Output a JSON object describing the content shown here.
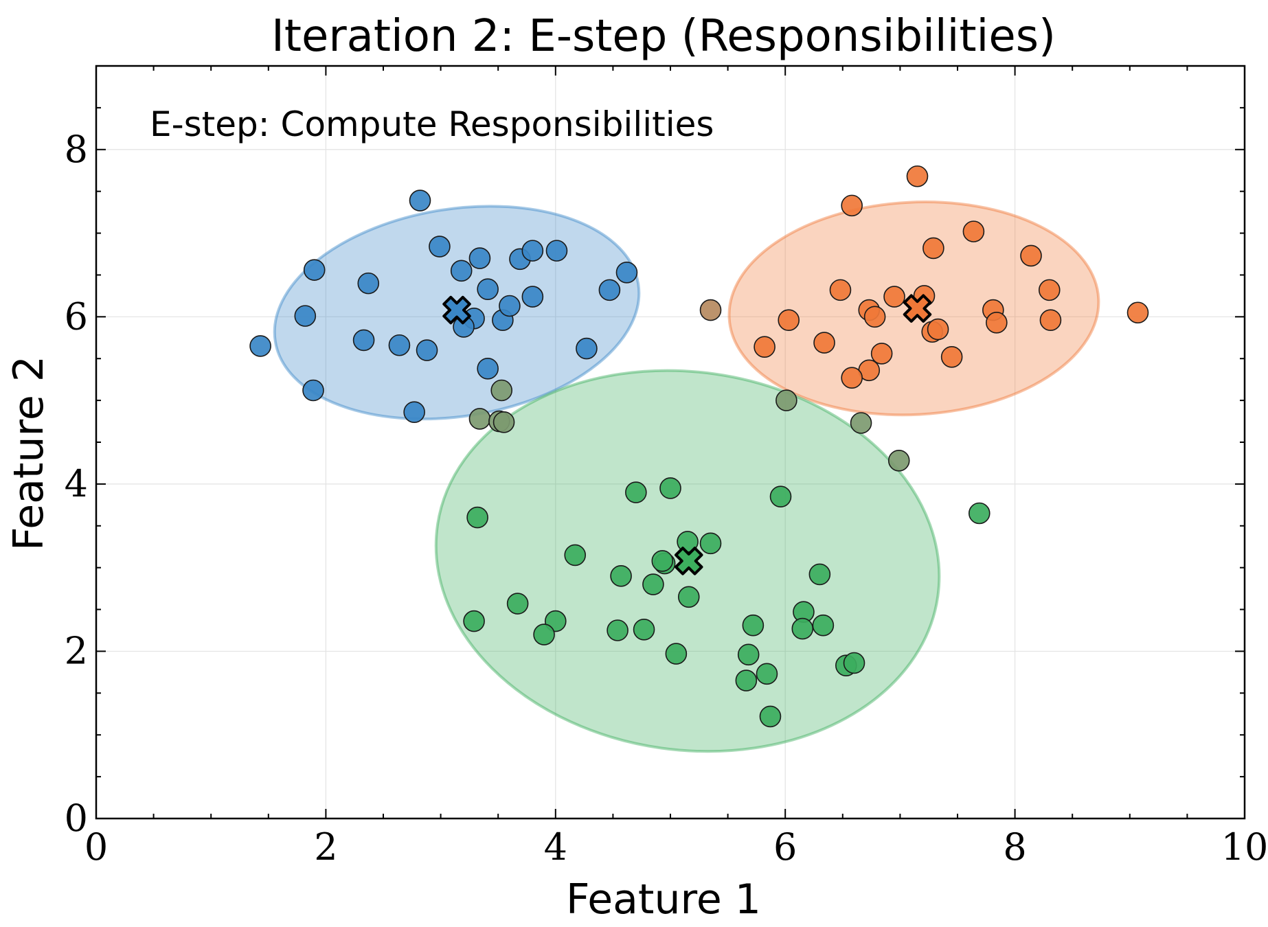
{
  "chart_data": {
    "type": "scatter",
    "title": "Iteration 2: E-step (Responsibilities)",
    "xlabel": "Feature 1",
    "ylabel": "Feature 2",
    "annotation": "E-step: Compute Responsibilities",
    "xlim": [
      0,
      10
    ],
    "ylim": [
      0,
      9
    ],
    "xticks": [
      0,
      2,
      4,
      6,
      8,
      10
    ],
    "yticks": [
      0,
      2,
      4,
      6,
      8
    ],
    "xtick_labels": [
      "0",
      "2",
      "4",
      "6",
      "8",
      "10"
    ],
    "ytick_labels": [
      "0",
      "2",
      "4",
      "6",
      "8"
    ],
    "grid": true,
    "ellipses": [
      {
        "color": "#3a87c7",
        "cx": 3.14,
        "cy": 6.05,
        "rx": 1.6,
        "ry": 1.24,
        "angle_deg": 9
      },
      {
        "color": "#f07838",
        "cx": 7.12,
        "cy": 6.1,
        "rx": 1.61,
        "ry": 1.27,
        "angle_deg": 3
      },
      {
        "color": "#3cae5e",
        "cx": 5.15,
        "cy": 3.08,
        "rx": 2.2,
        "ry": 2.26,
        "angle_deg": -8
      }
    ],
    "centroids": [
      {
        "color": "#3a87c7",
        "x": 3.14,
        "y": 6.08
      },
      {
        "color": "#f07838",
        "x": 7.15,
        "y": 6.1
      },
      {
        "color": "#3cae5e",
        "x": 5.16,
        "y": 3.08
      }
    ],
    "series": [
      {
        "color": "#3a87c7",
        "points": [
          [
            1.43,
            5.65
          ],
          [
            1.82,
            6.01
          ],
          [
            1.9,
            6.56
          ],
          [
            1.89,
            5.12
          ],
          [
            2.37,
            6.4
          ],
          [
            2.33,
            5.72
          ],
          [
            2.64,
            5.66
          ],
          [
            2.82,
            7.39
          ],
          [
            2.88,
            5.6
          ],
          [
            2.77,
            4.86
          ],
          [
            2.99,
            6.84
          ],
          [
            3.18,
            6.55
          ],
          [
            3.29,
            5.98
          ],
          [
            3.2,
            5.88
          ],
          [
            3.34,
            6.7
          ],
          [
            3.41,
            6.33
          ],
          [
            3.41,
            5.38
          ],
          [
            3.54,
            5.96
          ],
          [
            3.6,
            6.13
          ],
          [
            3.69,
            6.69
          ],
          [
            3.8,
            6.79
          ],
          [
            4.01,
            6.79
          ],
          [
            3.8,
            6.24
          ],
          [
            4.47,
            6.32
          ],
          [
            4.62,
            6.53
          ],
          [
            4.27,
            5.62
          ]
        ]
      },
      {
        "color": "#f07838",
        "points": [
          [
            7.15,
            7.68
          ],
          [
            6.58,
            7.33
          ],
          [
            7.64,
            7.02
          ],
          [
            7.29,
            6.82
          ],
          [
            8.14,
            6.73
          ],
          [
            6.48,
            6.32
          ],
          [
            6.95,
            6.24
          ],
          [
            7.21,
            6.25
          ],
          [
            8.3,
            6.32
          ],
          [
            7.81,
            6.08
          ],
          [
            9.07,
            6.05
          ],
          [
            6.73,
            6.08
          ],
          [
            6.78,
            6.0
          ],
          [
            6.03,
            5.96
          ],
          [
            7.84,
            5.93
          ],
          [
            8.31,
            5.96
          ],
          [
            7.28,
            5.82
          ],
          [
            7.33,
            5.85
          ],
          [
            6.34,
            5.69
          ],
          [
            6.84,
            5.56
          ],
          [
            7.45,
            5.52
          ],
          [
            5.82,
            5.64
          ],
          [
            6.73,
            5.36
          ],
          [
            6.58,
            5.27
          ]
        ]
      },
      {
        "color": "#3cae5e",
        "points": [
          [
            5.0,
            3.95
          ],
          [
            4.7,
            3.9
          ],
          [
            5.96,
            3.85
          ],
          [
            3.32,
            3.6
          ],
          [
            7.69,
            3.65
          ],
          [
            5.15,
            3.31
          ],
          [
            5.35,
            3.29
          ],
          [
            4.17,
            3.15
          ],
          [
            4.95,
            3.05
          ],
          [
            4.93,
            3.08
          ],
          [
            4.57,
            2.9
          ],
          [
            6.3,
            2.92
          ],
          [
            4.85,
            2.8
          ],
          [
            5.16,
            2.65
          ],
          [
            3.67,
            2.57
          ],
          [
            6.16,
            2.47
          ],
          [
            3.29,
            2.36
          ],
          [
            4.0,
            2.36
          ],
          [
            3.9,
            2.2
          ],
          [
            4.54,
            2.25
          ],
          [
            4.77,
            2.26
          ],
          [
            5.72,
            2.31
          ],
          [
            6.15,
            2.27
          ],
          [
            6.33,
            2.31
          ],
          [
            5.05,
            1.97
          ],
          [
            5.68,
            1.96
          ],
          [
            6.53,
            1.83
          ],
          [
            6.6,
            1.86
          ],
          [
            5.66,
            1.65
          ],
          [
            5.84,
            1.73
          ],
          [
            5.87,
            1.22
          ]
        ]
      },
      {
        "color": "#7d9a70",
        "points": [
          [
            3.53,
            5.12
          ],
          [
            3.34,
            4.78
          ],
          [
            3.51,
            4.75
          ],
          [
            3.55,
            4.74
          ],
          [
            6.01,
            5.0
          ],
          [
            6.66,
            4.73
          ],
          [
            6.99,
            4.28
          ]
        ]
      },
      {
        "color": "#b68a60",
        "points": [
          [
            5.35,
            6.08
          ]
        ]
      }
    ]
  }
}
